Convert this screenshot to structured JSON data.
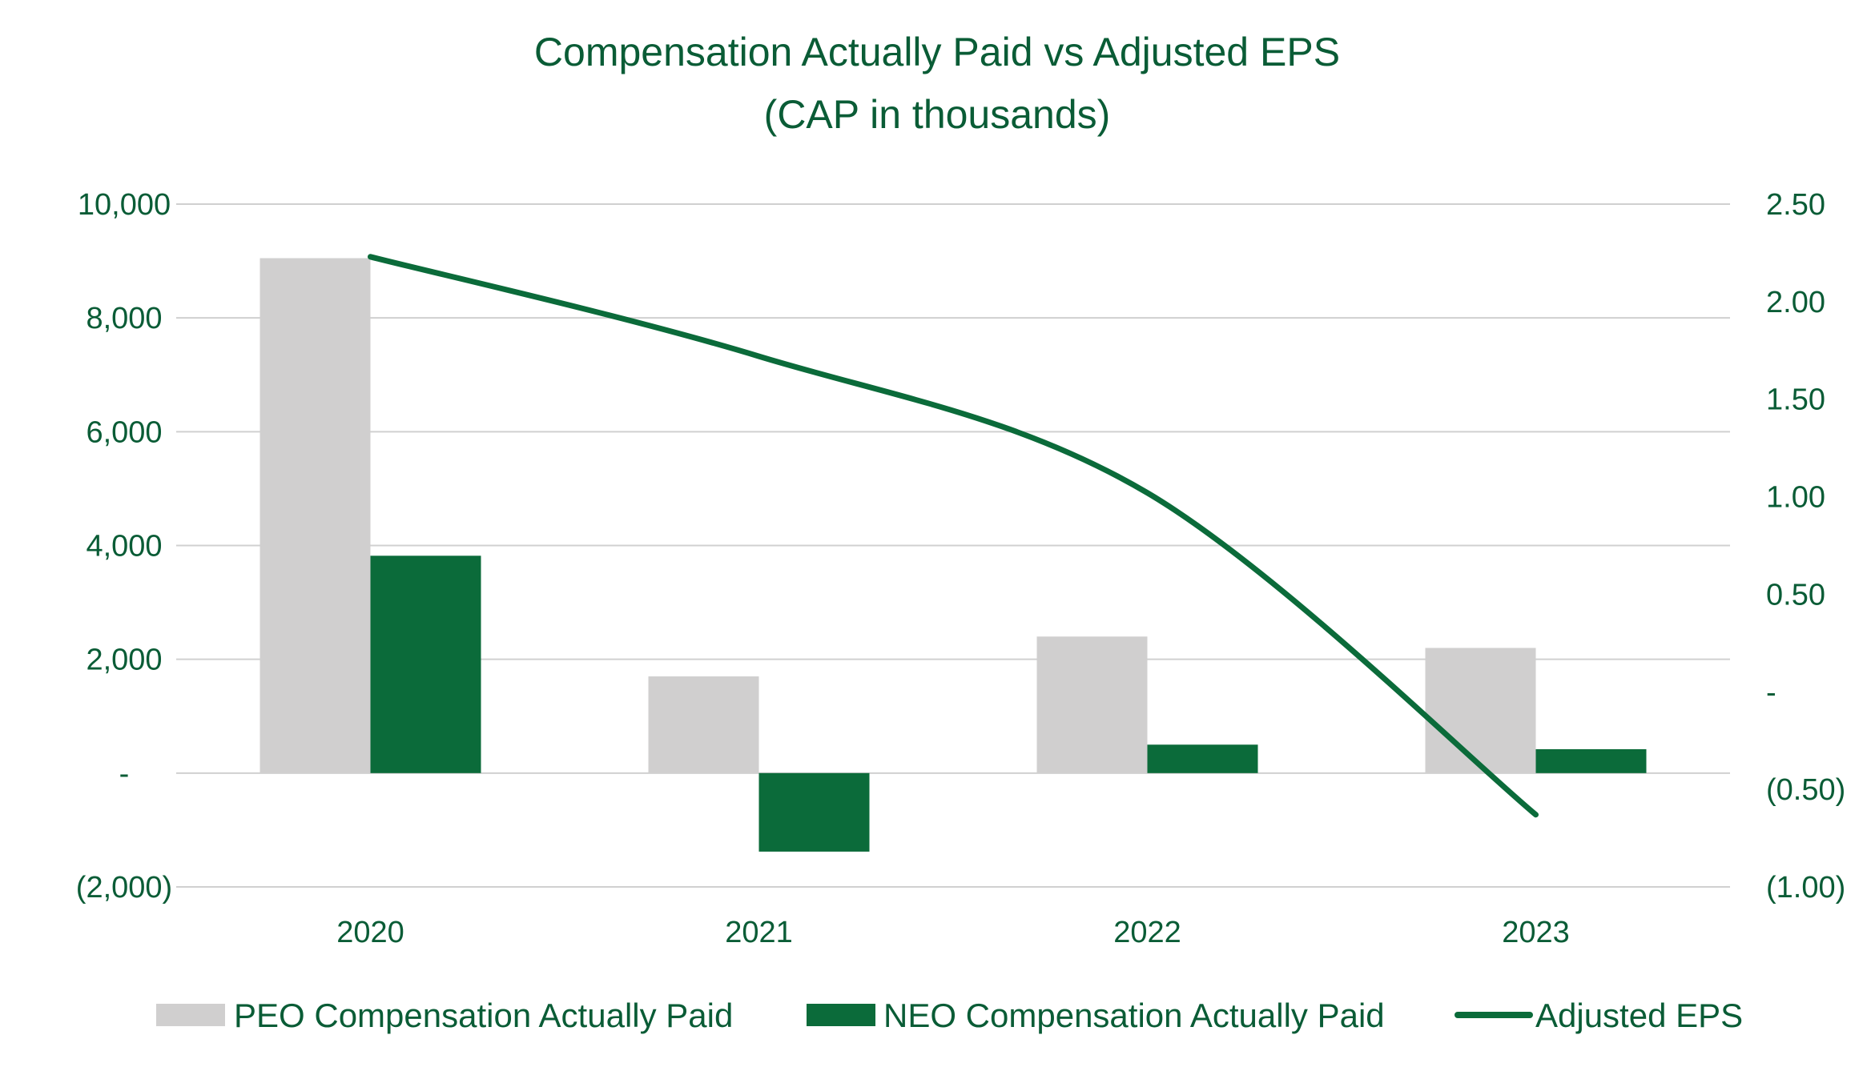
{
  "chart_data": {
    "type": "bar",
    "title": "Compensation Actually Paid vs Adjusted EPS",
    "subtitle": "(CAP in thousands)",
    "categories": [
      "2020",
      "2021",
      "2022",
      "2023"
    ],
    "series": [
      {
        "name": "PEO Compensation Actually Paid",
        "type": "bar",
        "axis": "left",
        "color": "#d0cfcf",
        "values": [
          9050,
          1700,
          2400,
          2200
        ]
      },
      {
        "name": "NEO Compensation Actually Paid",
        "type": "bar",
        "axis": "left",
        "color": "#0b6b3a",
        "values": [
          3820,
          -1380,
          500,
          420
        ]
      },
      {
        "name": "Adjusted EPS",
        "type": "line",
        "axis": "right",
        "color": "#0b6b3a",
        "values": [
          2.23,
          1.72,
          1.02,
          -0.63
        ]
      }
    ],
    "y_left": {
      "min": -2000,
      "max": 10000,
      "ticks": [
        10000,
        8000,
        6000,
        4000,
        2000,
        0,
        -2000
      ],
      "tick_labels": [
        "10,000",
        "8,000",
        "6,000",
        "4,000",
        "2,000",
        "-",
        "(2,000)"
      ]
    },
    "y_right": {
      "min": -1.0,
      "max": 2.5,
      "ticks": [
        2.5,
        2.0,
        1.5,
        1.0,
        0.5,
        0,
        -0.5,
        -1.0
      ],
      "tick_labels": [
        "2.50",
        "2.00",
        "1.50",
        "1.00",
        "0.50",
        "-",
        "(0.50)",
        "(1.00)"
      ]
    },
    "grid": true,
    "legend_position": "bottom"
  }
}
